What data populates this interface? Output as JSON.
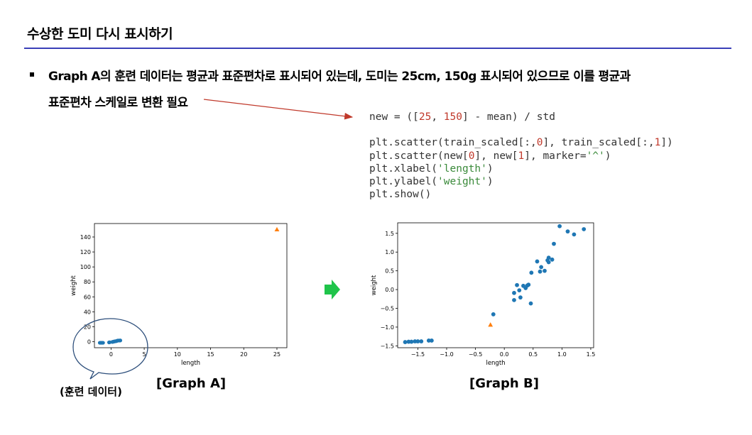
{
  "slide": {
    "title": "수상한 도미 다시 표시하기",
    "bullet_line1": "Graph A의 훈련 데이터는 평균과 표준편차로 표시되어 있는데, 도미는 25cm, 150g  표시되어 있으므로 이를 평균과",
    "bullet_line2": "표준편차 스케일로 변환 필요"
  },
  "code": {
    "lines": [
      [
        {
          "t": "new = (["
        },
        {
          "t": "25",
          "c": "num"
        },
        {
          "t": ", "
        },
        {
          "t": "150",
          "c": "num"
        },
        {
          "t": "] - mean) / std"
        }
      ],
      [],
      [
        {
          "t": "plt.scatter(train_scaled[:,"
        },
        {
          "t": "0",
          "c": "num"
        },
        {
          "t": "], train_scaled[:,"
        },
        {
          "t": "1",
          "c": "num"
        },
        {
          "t": "])"
        }
      ],
      [
        {
          "t": "plt.scatter(new["
        },
        {
          "t": "0",
          "c": "num"
        },
        {
          "t": "], new["
        },
        {
          "t": "1",
          "c": "num"
        },
        {
          "t": "], marker="
        },
        {
          "t": "'^'",
          "c": "str"
        },
        {
          "t": ")"
        }
      ],
      [
        {
          "t": "plt.xlabel("
        },
        {
          "t": "'length'",
          "c": "str"
        },
        {
          "t": ")"
        }
      ],
      [
        {
          "t": "plt.ylabel("
        },
        {
          "t": "'weight'",
          "c": "str"
        },
        {
          "t": ")"
        }
      ],
      [
        {
          "t": "plt.show()"
        }
      ]
    ]
  },
  "captions": {
    "graph_a": "[Graph A]",
    "graph_b": "[Graph B]",
    "bubble": "(훈련 데이터)"
  },
  "colors": {
    "rule": "#3a3fb8",
    "arrow_line": "#c0392b",
    "next_arrow": "#1fc44a",
    "train_points": "#1f77b4",
    "new_point": "#ff7f0e"
  },
  "chart_data": [
    {
      "type": "scatter",
      "id": "graph_a",
      "xlabel": "length",
      "ylabel": "weight",
      "xlim": [
        -2.5,
        26.5
      ],
      "ylim": [
        -8,
        158
      ],
      "xticks": [
        0,
        5,
        10,
        15,
        20,
        25
      ],
      "yticks": [
        0,
        20,
        40,
        60,
        80,
        100,
        120,
        140
      ],
      "series": [
        {
          "marker": "circle",
          "points": [
            [
              -1.7,
              -1.4
            ],
            [
              -1.6,
              -1.4
            ],
            [
              -1.5,
              -1.4
            ],
            [
              -1.4,
              -1.4
            ],
            [
              -1.3,
              -1.4
            ],
            [
              -1.2,
              -1.4
            ],
            [
              -0.3,
              -0.9
            ],
            [
              -0.2,
              -0.7
            ],
            [
              0.2,
              -0.3
            ],
            [
              0.3,
              -0.1
            ],
            [
              0.4,
              0.1
            ],
            [
              0.5,
              0.4
            ],
            [
              0.6,
              0.5
            ],
            [
              0.7,
              0.7
            ],
            [
              0.8,
              0.8
            ],
            [
              0.9,
              1.2
            ],
            [
              1.0,
              1.5
            ],
            [
              1.1,
              1.6
            ],
            [
              1.3,
              1.6
            ],
            [
              1.4,
              1.7
            ]
          ]
        },
        {
          "marker": "triangle",
          "points": [
            [
              25,
              150
            ]
          ]
        }
      ]
    },
    {
      "type": "scatter",
      "id": "graph_b",
      "xlabel": "length",
      "ylabel": "weight",
      "xlim": [
        -1.85,
        1.55
      ],
      "ylim": [
        -1.55,
        1.78
      ],
      "xticks": [
        -1.5,
        -1.0,
        -0.5,
        0.0,
        0.5,
        1.0,
        1.5
      ],
      "xtick_labels": [
        "−1.5",
        "−1.0",
        "−0.5",
        "0.0",
        "0.5",
        "1.0",
        "1.5"
      ],
      "yticks": [
        -1.5,
        -1.0,
        -0.5,
        0.0,
        0.5,
        1.0,
        1.5
      ],
      "ytick_labels": [
        "−1.5",
        "−1.0",
        "−0.5",
        "0.0",
        "0.5",
        "1.0",
        "1.5"
      ],
      "series": [
        {
          "marker": "circle",
          "points": [
            [
              -1.72,
              -1.4
            ],
            [
              -1.66,
              -1.39
            ],
            [
              -1.61,
              -1.39
            ],
            [
              -1.55,
              -1.38
            ],
            [
              -1.5,
              -1.38
            ],
            [
              -1.44,
              -1.38
            ],
            [
              -1.31,
              -1.36
            ],
            [
              -1.26,
              -1.36
            ],
            [
              -0.19,
              -0.66
            ],
            [
              0.17,
              -0.28
            ],
            [
              0.17,
              -0.09
            ],
            [
              0.22,
              0.12
            ],
            [
              0.26,
              -0.02
            ],
            [
              0.28,
              -0.21
            ],
            [
              0.33,
              0.1
            ],
            [
              0.37,
              0.04
            ],
            [
              0.4,
              0.11
            ],
            [
              0.42,
              0.13
            ],
            [
              0.46,
              -0.37
            ],
            [
              0.47,
              0.45
            ],
            [
              0.57,
              0.75
            ],
            [
              0.62,
              0.48
            ],
            [
              0.64,
              0.6
            ],
            [
              0.7,
              0.5
            ],
            [
              0.75,
              0.78
            ],
            [
              0.77,
              0.73
            ],
            [
              0.77,
              0.85
            ],
            [
              0.83,
              0.8
            ],
            [
              0.86,
              1.22
            ],
            [
              0.96,
              1.69
            ],
            [
              1.1,
              1.55
            ],
            [
              1.21,
              1.47
            ],
            [
              1.38,
              1.61
            ]
          ]
        },
        {
          "marker": "triangle",
          "points": [
            [
              -0.24,
              -0.94
            ]
          ]
        }
      ]
    }
  ]
}
